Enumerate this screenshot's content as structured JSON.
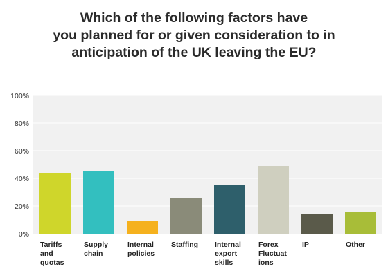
{
  "title_lines": [
    "Which of the following factors have",
    "you planned for or given consideration to in",
    "anticipation of the UK leaving the EU?"
  ],
  "chart_data": {
    "type": "bar",
    "title": "Which of the following factors have you planned for or given consideration to in anticipation of the UK leaving the EU?",
    "xlabel": "",
    "ylabel": "",
    "ylim": [
      0,
      100
    ],
    "y_ticks": [
      "0%",
      "20%",
      "40%",
      "60%",
      "80%",
      "100%"
    ],
    "y_tick_values": [
      0,
      20,
      40,
      60,
      80,
      100
    ],
    "grid": true,
    "legend": "none",
    "categories": [
      "Tariffs and quotas",
      "Supply chain",
      "Internal policies",
      "Staffing",
      "Internal export skills",
      "Forex Fluctuations",
      "IP",
      "Other"
    ],
    "category_label_lines": [
      [
        "Tariffs",
        "and",
        "quotas"
      ],
      [
        "Supply",
        "chain"
      ],
      [
        "Internal",
        "policies"
      ],
      [
        "Staffing"
      ],
      [
        "Internal",
        "export",
        "skills"
      ],
      [
        "Forex",
        "Fluctuat",
        "ions"
      ],
      [
        "IP"
      ],
      [
        "Other"
      ]
    ],
    "values": [
      44,
      45.5,
      9.5,
      25.5,
      35.5,
      49,
      14.5,
      15.5
    ],
    "colors": [
      "#cfd62b",
      "#33bfbf",
      "#f5b11e",
      "#8a8b79",
      "#2e5f6b",
      "#cfcfbf",
      "#5a5a4a",
      "#a8bd38"
    ],
    "plot_background": "#f1f1f1",
    "grid_color": "#ffffff"
  }
}
